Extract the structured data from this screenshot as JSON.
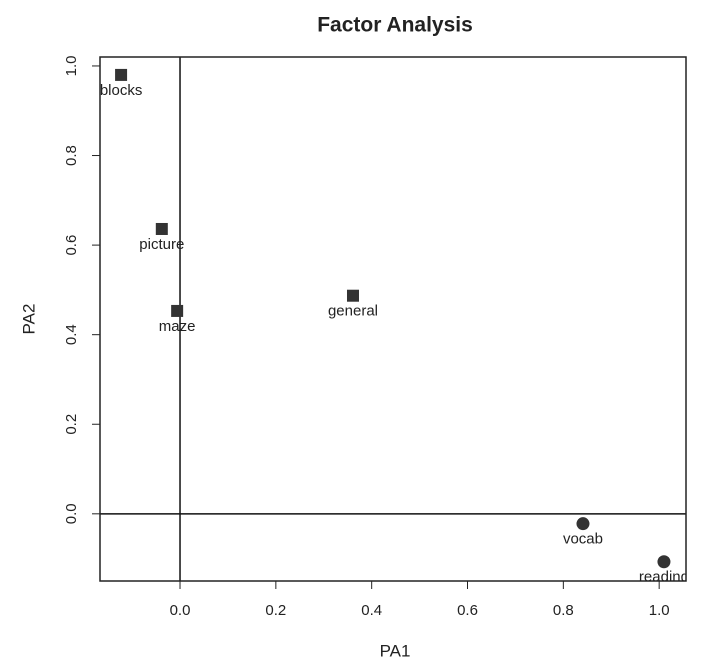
{
  "chart_data": {
    "type": "scatter",
    "title": "Factor Analysis",
    "xlabel": "PA1",
    "ylabel": "PA2",
    "x": [
      -0.123,
      -0.038,
      -0.006,
      0.361,
      0.841,
      1.01
    ],
    "values": [
      0.98,
      0.636,
      0.453,
      0.487,
      -0.022,
      -0.107
    ],
    "point_labels": [
      "blocks",
      "picture",
      "maze",
      "general",
      "vocab",
      "reading"
    ],
    "markers": [
      "square",
      "square",
      "square",
      "square",
      "circle",
      "circle"
    ],
    "color": "#333333",
    "reference_lines": {
      "x": 0,
      "y": 0
    },
    "xlim": [
      -0.167,
      1.056
    ],
    "ylim": [
      -0.15,
      1.02
    ],
    "xticks": [
      {
        "value": 0,
        "label": "0.0"
      },
      0.2,
      0.4,
      0.6,
      0.8,
      {
        "value": 1,
        "label": "1.0"
      }
    ],
    "yticks": [
      {
        "value": 0,
        "label": "0.0"
      },
      0.2,
      0.4,
      0.6,
      0.8,
      {
        "value": 1,
        "label": "1.0"
      }
    ]
  }
}
